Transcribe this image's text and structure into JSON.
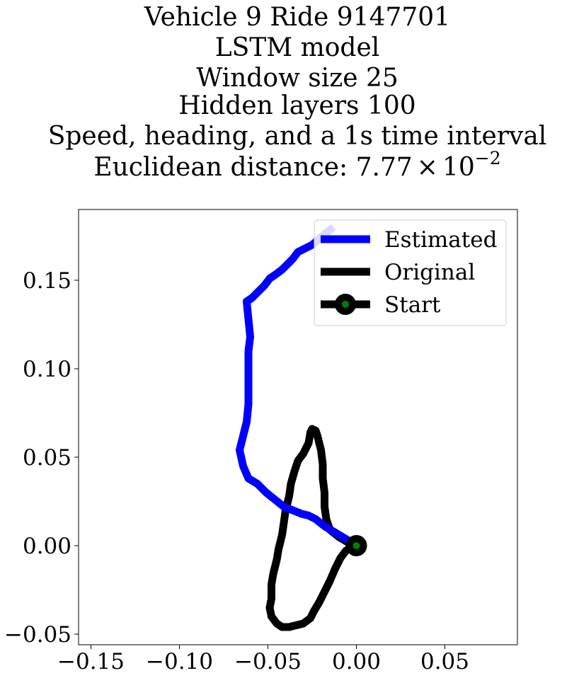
{
  "chart_data": {
    "type": "line",
    "title_lines": [
      "Vehicle 9 Ride 9147701",
      "LSTM model",
      "Window size 25",
      "Hidden layers 100",
      "Speed, heading, and a 1s time interval",
      "Euclidean distance: 7.77×10⁻²"
    ],
    "title_parts": {
      "base": "Euclidean distance: 7.77",
      "times": "×",
      "ten": "10",
      "exponent": "−2"
    },
    "xlabel": "",
    "ylabel": "",
    "xlim": [
      -0.157,
      0.091
    ],
    "ylim": [
      -0.056,
      0.19
    ],
    "xticks": [
      -0.15,
      -0.1,
      -0.05,
      0.0,
      0.05
    ],
    "xtick_labels": [
      "−0.15",
      "−0.10",
      "−0.05",
      "0.00",
      "0.05"
    ],
    "yticks": [
      -0.05,
      0.0,
      0.05,
      0.1,
      0.15
    ],
    "ytick_labels": [
      "−0.05",
      "0.00",
      "0.05",
      "0.10",
      "0.15"
    ],
    "grid": false,
    "legend_position": "top-right",
    "series": [
      {
        "name": "Estimated",
        "color": "#0000ff",
        "x": [
          0.0,
          -0.003,
          -0.008,
          -0.013,
          -0.018,
          -0.023,
          -0.027,
          -0.031,
          -0.036,
          -0.041,
          -0.046,
          -0.051,
          -0.056,
          -0.061,
          -0.064,
          -0.066,
          -0.064,
          -0.062,
          -0.061,
          -0.061,
          -0.061,
          -0.061,
          -0.061,
          -0.06,
          -0.061,
          -0.062,
          -0.059,
          -0.056,
          -0.052,
          -0.049,
          -0.046,
          -0.042,
          -0.039,
          -0.036,
          -0.033,
          -0.029,
          -0.025,
          -0.018,
          -0.013
        ],
        "y": [
          0.0,
          0.002,
          0.005,
          0.008,
          0.011,
          0.015,
          0.017,
          0.018,
          0.02,
          0.022,
          0.026,
          0.03,
          0.035,
          0.038,
          0.045,
          0.054,
          0.062,
          0.07,
          0.08,
          0.09,
          0.1,
          0.104,
          0.11,
          0.118,
          0.128,
          0.138,
          0.14,
          0.143,
          0.147,
          0.151,
          0.153,
          0.156,
          0.159,
          0.162,
          0.166,
          0.168,
          0.17,
          0.176,
          0.18
        ]
      },
      {
        "name": "Original",
        "color": "#000000",
        "x": [
          0.0,
          -0.005,
          -0.01,
          -0.015,
          -0.017,
          -0.018,
          -0.018,
          -0.019,
          -0.019,
          -0.02,
          -0.021,
          -0.022,
          -0.023,
          -0.025,
          -0.026,
          -0.027,
          -0.03,
          -0.033,
          -0.035,
          -0.037,
          -0.038,
          -0.04,
          -0.041,
          -0.042,
          -0.044,
          -0.045,
          -0.046,
          -0.047,
          -0.048,
          -0.048,
          -0.049,
          -0.048,
          -0.045,
          -0.042,
          -0.038,
          -0.034,
          -0.03,
          -0.026,
          -0.024,
          -0.021,
          -0.018,
          -0.015,
          -0.012,
          -0.009,
          -0.006,
          -0.002,
          0.0
        ],
        "y": [
          0.0,
          0.002,
          0.005,
          0.009,
          0.015,
          0.022,
          0.03,
          0.038,
          0.046,
          0.054,
          0.058,
          0.062,
          0.065,
          0.066,
          0.064,
          0.058,
          0.052,
          0.048,
          0.042,
          0.035,
          0.028,
          0.02,
          0.013,
          0.006,
          -0.002,
          -0.008,
          -0.012,
          -0.016,
          -0.022,
          -0.03,
          -0.035,
          -0.04,
          -0.044,
          -0.046,
          -0.046,
          -0.045,
          -0.044,
          -0.041,
          -0.037,
          -0.032,
          -0.026,
          -0.02,
          -0.013,
          -0.007,
          -0.003,
          0.0,
          0.0
        ]
      }
    ],
    "start": {
      "name": "Start",
      "x": 0.0,
      "y": 0.0,
      "face_color": "#008000",
      "edge_color": "#000000"
    },
    "legend_entries": [
      "Estimated",
      "Original",
      "Start"
    ]
  }
}
